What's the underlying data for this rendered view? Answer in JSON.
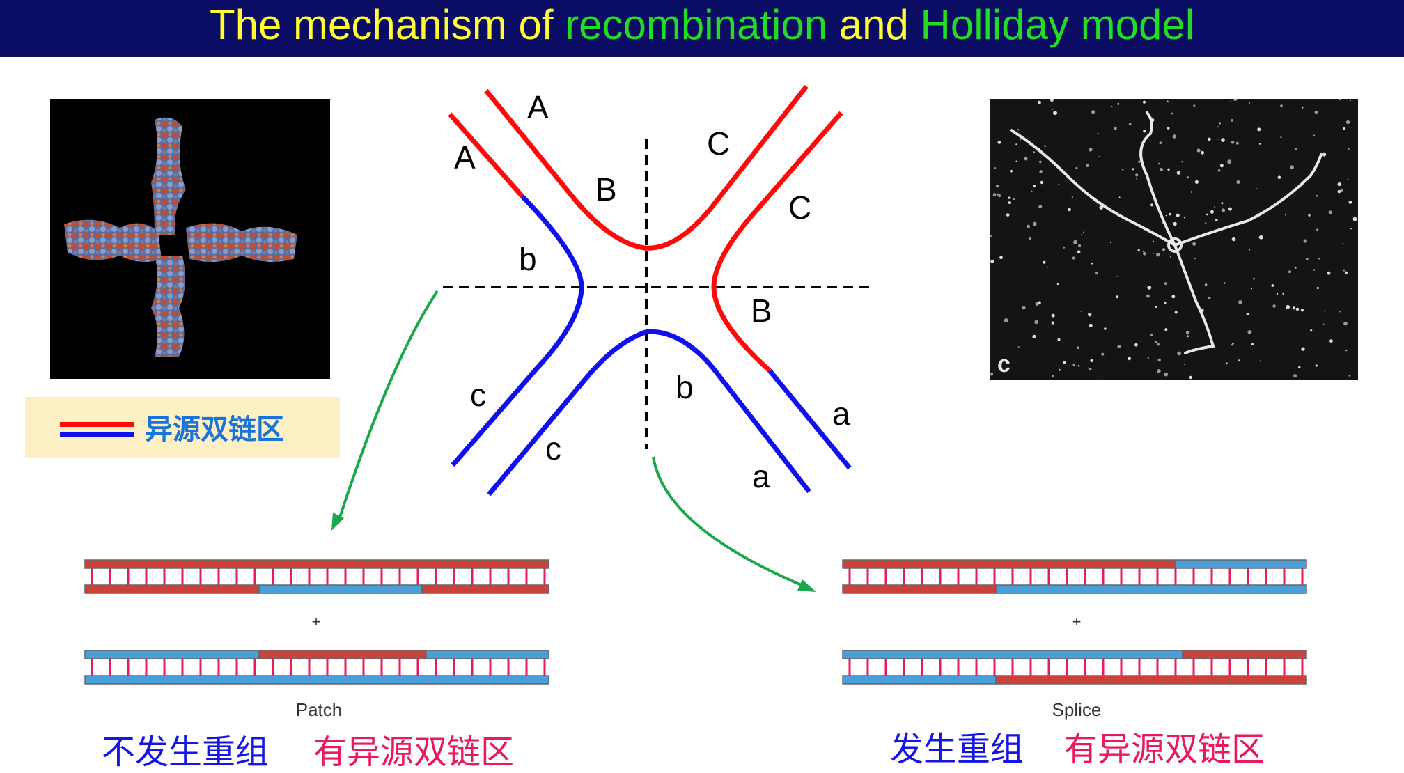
{
  "title": {
    "part1": "The mechanism of ",
    "part2": "recombination",
    "part3": " and ",
    "part4": "Holliday model"
  },
  "strand_labels": {
    "A_outer": "A",
    "A_inner": "A",
    "B_upper": "B",
    "C_outer": "C",
    "C_inner": "C",
    "b_left": "b",
    "B_right": "B",
    "c_outer": "c",
    "c_inner": "c",
    "b_lower": "b",
    "a_outer": "a",
    "a_inner": "a"
  },
  "legend": {
    "label": "异源双链区"
  },
  "micrograph": {
    "panel_letter": "c"
  },
  "patch": {
    "plus": "+",
    "label": "Patch"
  },
  "splice": {
    "plus": "+",
    "label": "Splice"
  },
  "captions": {
    "left_no_recomb": "不发生重组",
    "left_hetero": "有异源双链区",
    "right_recomb": "发生重组",
    "right_hetero": "有异源双链区"
  },
  "colors": {
    "red_strand": "#ff0a0a",
    "blue_strand": "#1010ee",
    "arrow": "#1aa84a",
    "dna_red": "#c9423b",
    "dna_blue": "#4a9fd8",
    "rung": "#e8195f"
  }
}
